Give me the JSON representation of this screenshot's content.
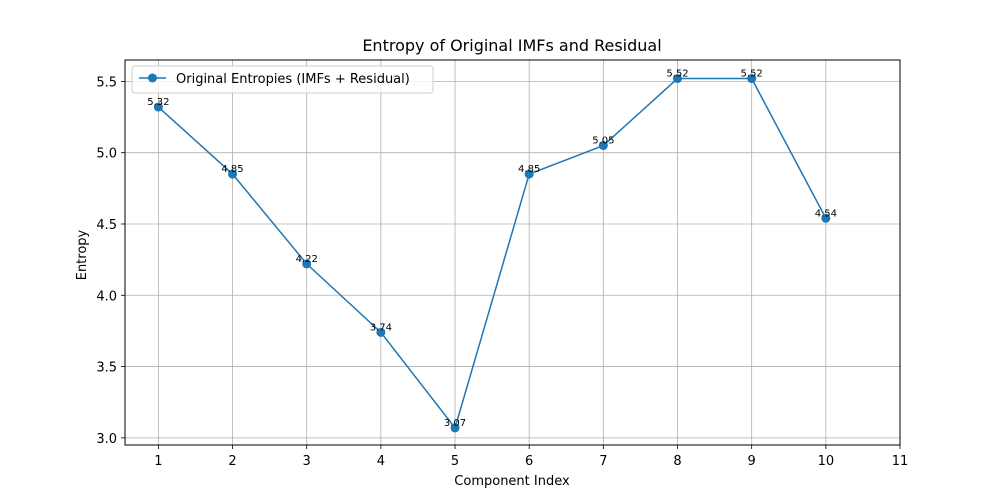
{
  "chart_data": {
    "type": "line",
    "title": "Entropy of Original IMFs and Residual",
    "xlabel": "Component Index",
    "ylabel": "Entropy",
    "xlim": [
      0.55,
      11
    ],
    "ylim": [
      2.95,
      5.65
    ],
    "xticks": [
      1,
      2,
      3,
      4,
      5,
      6,
      7,
      8,
      9,
      10,
      11
    ],
    "yticks": [
      3.0,
      3.5,
      4.0,
      4.5,
      5.0,
      5.5
    ],
    "grid": true,
    "legend_position": "top-left",
    "series": [
      {
        "name": "Original Entropies (IMFs + Residual)",
        "color": "#1f77b4",
        "marker": "circle",
        "x": [
          1,
          2,
          3,
          4,
          5,
          6,
          7,
          8,
          9,
          10
        ],
        "y": [
          5.32,
          4.85,
          4.22,
          3.74,
          3.07,
          4.85,
          5.05,
          5.52,
          5.52,
          4.54
        ],
        "labels": [
          "5.32",
          "4.85",
          "4.22",
          "3.74",
          "3.07",
          "4.85",
          "5.05",
          "5.52",
          "5.52",
          "4.54"
        ]
      }
    ]
  }
}
